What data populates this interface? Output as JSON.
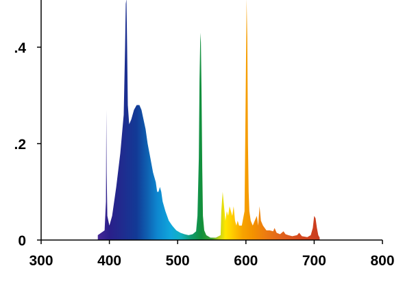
{
  "chart_data": {
    "type": "area",
    "title": "",
    "xlabel": "",
    "ylabel": "",
    "xlim": [
      300,
      800
    ],
    "ylim": [
      0,
      0.5
    ],
    "x_ticks": [
      300,
      400,
      500,
      600,
      700,
      800
    ],
    "x_tick_labels": [
      "300",
      "400",
      "500",
      "600",
      "700",
      "800"
    ],
    "y_ticks": [
      0,
      0.2,
      0.4
    ],
    "y_tick_labels": [
      "0",
      ".2",
      ".4"
    ],
    "grid": false,
    "legend": "none",
    "fill": "spectral color gradient by wavelength",
    "series": [
      {
        "x": [
          383,
          393,
          395,
          395.5,
          396,
          397,
          400,
          404,
          410,
          416,
          421,
          423,
          424,
          425,
          426,
          427,
          429,
          432,
          436,
          440,
          444,
          447,
          450,
          453,
          456,
          460,
          464,
          468,
          470,
          472,
          474,
          476,
          478,
          482,
          487,
          492,
          498,
          504,
          510,
          516,
          522,
          527,
          529,
          531,
          532,
          533,
          533.5,
          534,
          535,
          536,
          537,
          539,
          542,
          548,
          556,
          563,
          564,
          566,
          568,
          570,
          572,
          574,
          576,
          578,
          580,
          582,
          584,
          586,
          588,
          590,
          594,
          598,
          600,
          601,
          602,
          603,
          604,
          605,
          607,
          610,
          613,
          616,
          618,
          620,
          622,
          625,
          630,
          635,
          640,
          642,
          645,
          650,
          655,
          658,
          662,
          668,
          675,
          678,
          682,
          690,
          695,
          698,
          700,
          702,
          704,
          706,
          708
        ],
        "y": [
          0.01,
          0.02,
          0.08,
          0.27,
          0.14,
          0.05,
          0.03,
          0.05,
          0.11,
          0.18,
          0.26,
          0.4,
          0.49,
          0.5,
          0.4,
          0.28,
          0.24,
          0.25,
          0.27,
          0.28,
          0.28,
          0.27,
          0.25,
          0.23,
          0.2,
          0.17,
          0.14,
          0.12,
          0.1,
          0.1,
          0.11,
          0.1,
          0.08,
          0.06,
          0.04,
          0.03,
          0.02,
          0.015,
          0.012,
          0.01,
          0.012,
          0.018,
          0.05,
          0.17,
          0.33,
          0.41,
          0.43,
          0.41,
          0.3,
          0.15,
          0.05,
          0.02,
          0.01,
          0.005,
          0.005,
          0.01,
          0.06,
          0.1,
          0.07,
          0.04,
          0.06,
          0.05,
          0.07,
          0.06,
          0.05,
          0.07,
          0.04,
          0.03,
          0.04,
          0.03,
          0.03,
          0.06,
          0.35,
          0.5,
          0.42,
          0.2,
          0.1,
          0.06,
          0.04,
          0.03,
          0.04,
          0.05,
          0.03,
          0.07,
          0.04,
          0.03,
          0.02,
          0.02,
          0.018,
          0.025,
          0.015,
          0.012,
          0.018,
          0.012,
          0.01,
          0.008,
          0.01,
          0.015,
          0.008,
          0.006,
          0.01,
          0.025,
          0.05,
          0.045,
          0.025,
          0.01,
          0.005
        ]
      }
    ]
  }
}
